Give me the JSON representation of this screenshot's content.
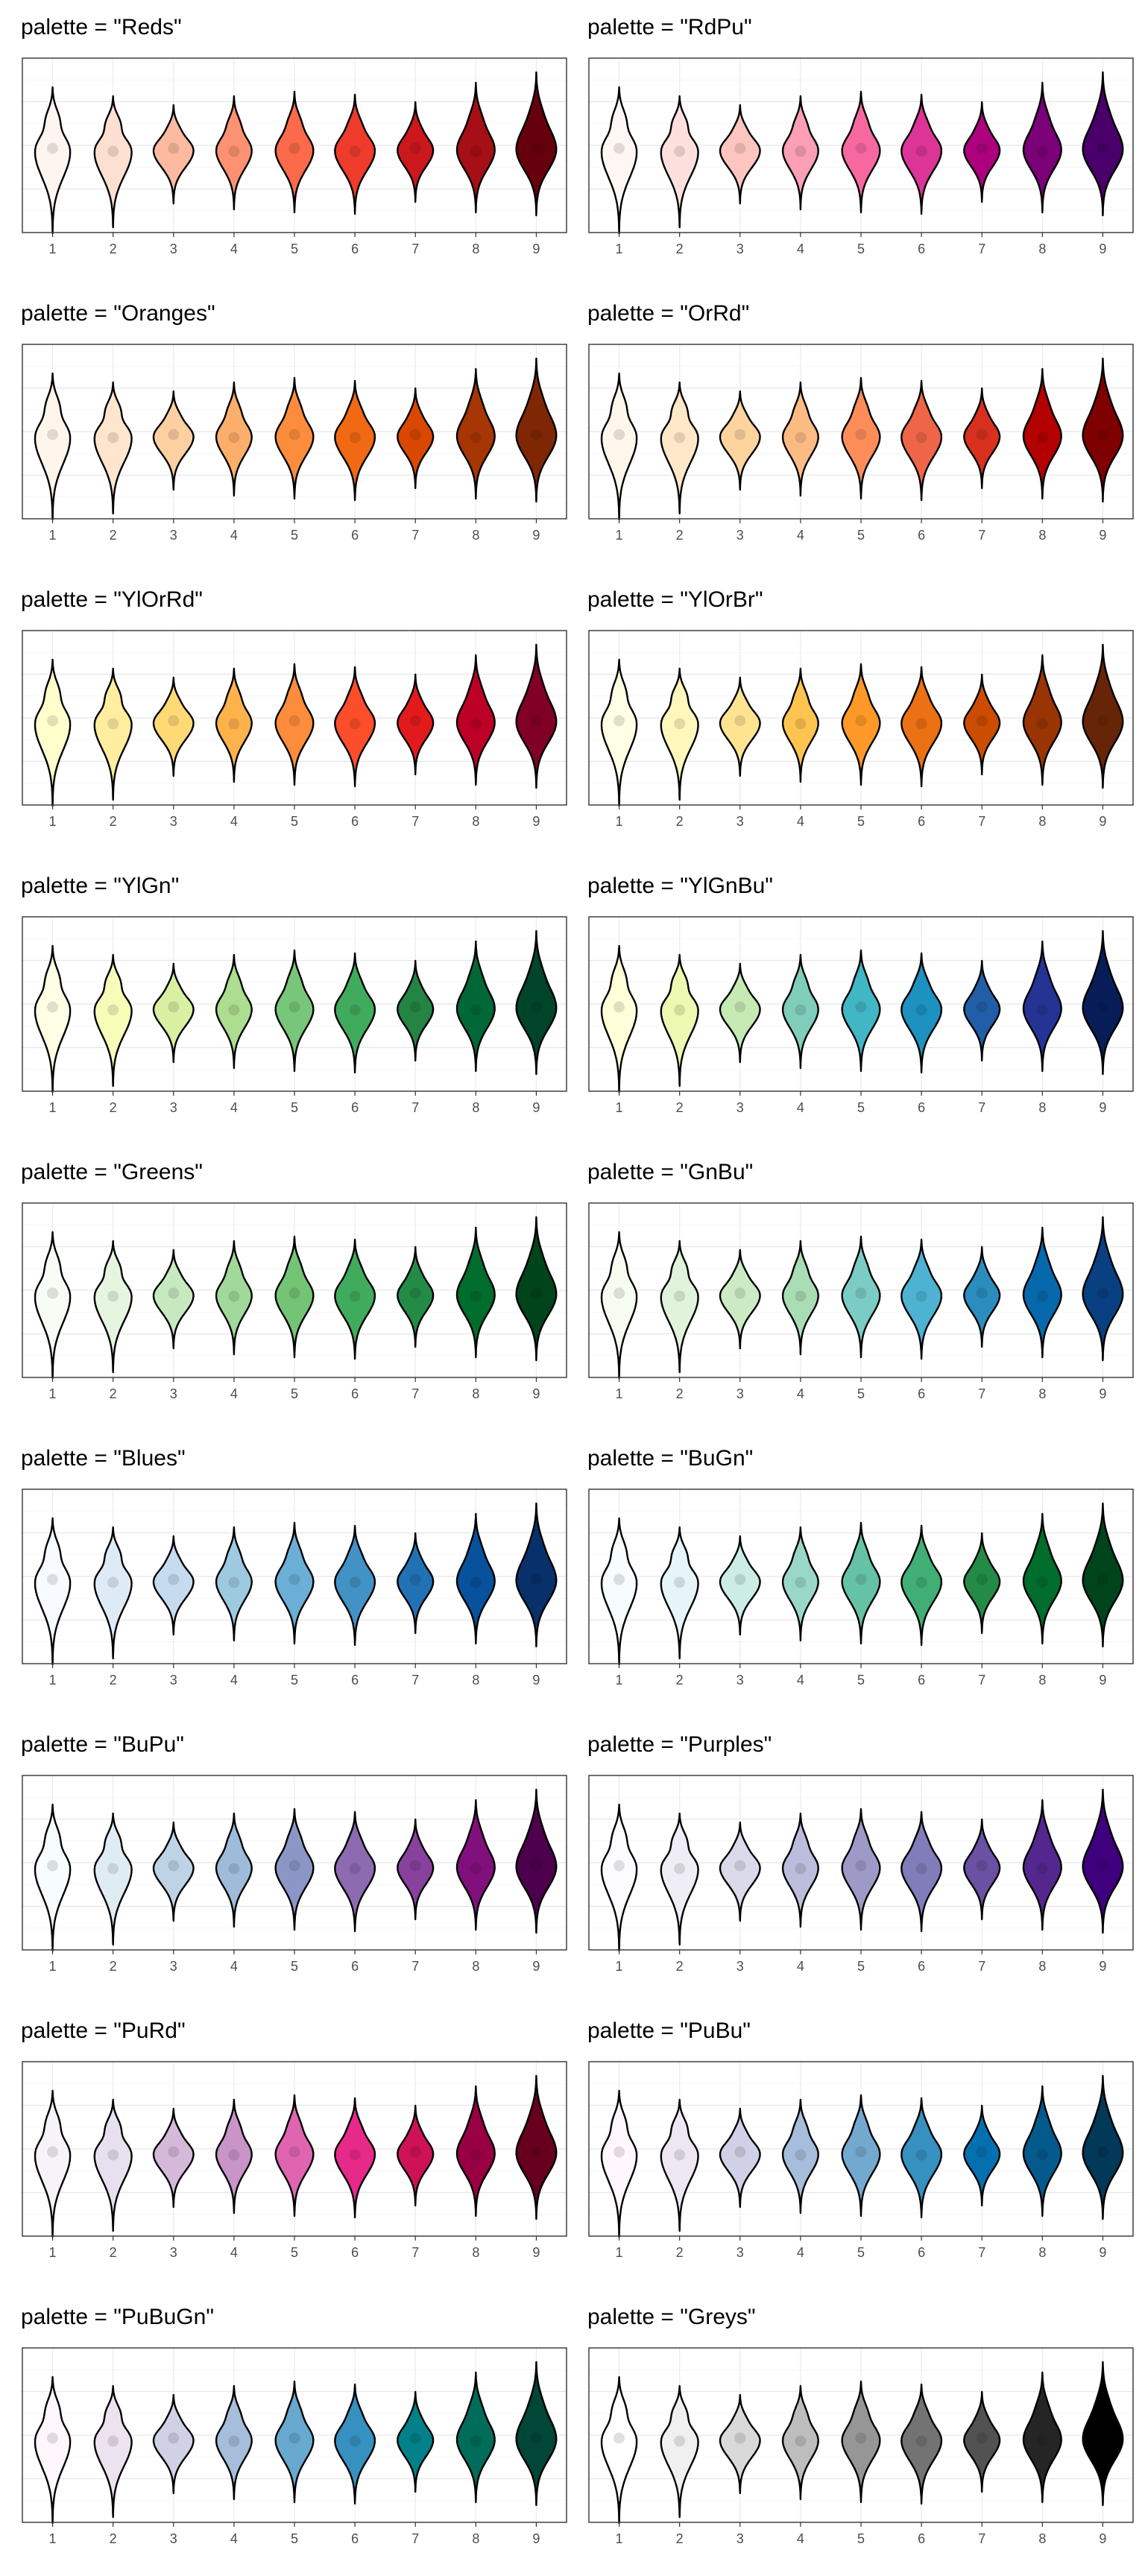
{
  "chart_data": {
    "type": "violin",
    "x_categories": [
      "1",
      "2",
      "3",
      "4",
      "5",
      "6",
      "7",
      "8",
      "9"
    ],
    "grid": true,
    "legend": "none",
    "panels": [
      {
        "title": "palette = \"Reds\"",
        "colors": [
          "#FFF5F0",
          "#FEE0D2",
          "#FCBBA1",
          "#FC9272",
          "#FB6A4A",
          "#EF3B2C",
          "#CB181D",
          "#A50F15",
          "#67000D"
        ]
      },
      {
        "title": "palette = \"RdPu\"",
        "colors": [
          "#FFF7F3",
          "#FDE0DD",
          "#FCC5C0",
          "#FA9FB5",
          "#F768A1",
          "#DD3497",
          "#AE017E",
          "#7A0177",
          "#49006A"
        ]
      },
      {
        "title": "palette = \"Oranges\"",
        "colors": [
          "#FFF5EB",
          "#FEE6CE",
          "#FDD0A2",
          "#FDAE6B",
          "#FD8D3C",
          "#F16913",
          "#D94801",
          "#A63603",
          "#7F2704"
        ]
      },
      {
        "title": "palette = \"OrRd\"",
        "colors": [
          "#FFF7EC",
          "#FEE8C8",
          "#FDD49E",
          "#FDBB84",
          "#FC8D59",
          "#EF6548",
          "#D7301F",
          "#B30000",
          "#7F0000"
        ]
      },
      {
        "title": "palette = \"YlOrRd\"",
        "colors": [
          "#FFFFCC",
          "#FFEDA0",
          "#FED976",
          "#FEB24C",
          "#FD8D3C",
          "#FC4E2A",
          "#E31A1C",
          "#BD0026",
          "#800026"
        ]
      },
      {
        "title": "palette = \"YlOrBr\"",
        "colors": [
          "#FFFFE5",
          "#FFF7BC",
          "#FEE391",
          "#FEC44F",
          "#FE9929",
          "#EC7014",
          "#CC4C02",
          "#993404",
          "#662506"
        ]
      },
      {
        "title": "palette = \"YlGn\"",
        "colors": [
          "#FFFFE5",
          "#F7FCB9",
          "#D9F0A3",
          "#ADDD8E",
          "#78C679",
          "#41AB5D",
          "#238443",
          "#006837",
          "#004529"
        ]
      },
      {
        "title": "palette = \"YlGnBu\"",
        "colors": [
          "#FFFFD9",
          "#EDF8B1",
          "#C7E9B4",
          "#7FCDBB",
          "#41B6C4",
          "#1D91C0",
          "#225EA8",
          "#253494",
          "#081D58"
        ]
      },
      {
        "title": "palette = \"Greens\"",
        "colors": [
          "#F7FCF5",
          "#E5F5E0",
          "#C7E9C0",
          "#A1D99B",
          "#74C476",
          "#41AB5D",
          "#238B45",
          "#006D2C",
          "#00441B"
        ]
      },
      {
        "title": "palette = \"GnBu\"",
        "colors": [
          "#F7FCF0",
          "#E0F3DB",
          "#CCEBC5",
          "#A8DDB5",
          "#7BCCC4",
          "#4EB3D3",
          "#2B8CBE",
          "#0868AC",
          "#084081"
        ]
      },
      {
        "title": "palette = \"Blues\"",
        "colors": [
          "#F7FBFF",
          "#DEEBF7",
          "#C6DBEF",
          "#9ECAE1",
          "#6BAED6",
          "#4292C6",
          "#2171B5",
          "#08519C",
          "#08306B"
        ]
      },
      {
        "title": "palette = \"BuGn\"",
        "colors": [
          "#F7FCFD",
          "#E5F5F9",
          "#CCECE6",
          "#99D8C9",
          "#66C2A4",
          "#41AE76",
          "#238B45",
          "#006D2C",
          "#00441B"
        ]
      },
      {
        "title": "palette = \"BuPu\"",
        "colors": [
          "#F7FCFD",
          "#E0ECF4",
          "#BFD3E6",
          "#9EBCDA",
          "#8C96C6",
          "#8C6BB1",
          "#88419D",
          "#810F7C",
          "#4D004B"
        ]
      },
      {
        "title": "palette = \"Purples\"",
        "colors": [
          "#FCFBFD",
          "#EFEDF5",
          "#DADAEB",
          "#BCBDDC",
          "#9E9AC8",
          "#807DBA",
          "#6A51A3",
          "#54278F",
          "#3F007D"
        ]
      },
      {
        "title": "palette = \"PuRd\"",
        "colors": [
          "#F7F4F9",
          "#E7E1EF",
          "#D4B9DA",
          "#C994C7",
          "#DF65B0",
          "#E7298A",
          "#CE1256",
          "#980043",
          "#67001F"
        ]
      },
      {
        "title": "palette = \"PuBu\"",
        "colors": [
          "#FFF7FB",
          "#ECE7F2",
          "#D0D1E6",
          "#A6BDDB",
          "#74A9CF",
          "#3690C0",
          "#0570B0",
          "#045A8D",
          "#023858"
        ]
      },
      {
        "title": "palette = \"PuBuGn\"",
        "colors": [
          "#FFF7FB",
          "#ECE2F0",
          "#D0D1E6",
          "#A6BDDB",
          "#67A9CF",
          "#3690C0",
          "#02818A",
          "#016C59",
          "#014636"
        ]
      },
      {
        "title": "palette = \"Greys\"",
        "colors": [
          "#FFFFFF",
          "#F0F0F0",
          "#D9D9D9",
          "#BDBDBD",
          "#969696",
          "#737373",
          "#525252",
          "#252525",
          "#000000"
        ]
      }
    ]
  }
}
